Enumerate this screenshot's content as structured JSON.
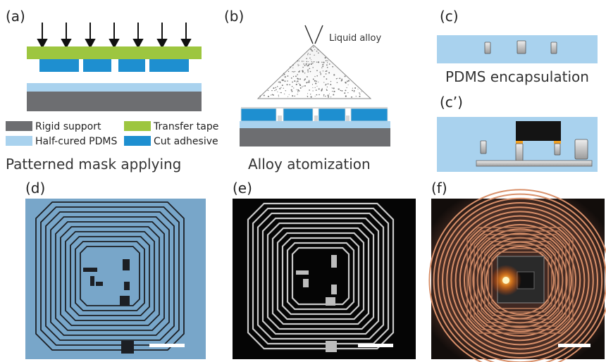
{
  "panels": {
    "a": {
      "tag": "(a)",
      "caption": "Patterned mask applying",
      "legend": [
        {
          "label": "Rigid support",
          "color": "#6d6e71"
        },
        {
          "label": "Transfer tape",
          "color": "#9dc63f"
        },
        {
          "label": "Half-cured PDMS",
          "color": "#a9d2ee"
        },
        {
          "label": "Cut adhesive",
          "color": "#1e8fd0"
        }
      ]
    },
    "b": {
      "tag": "(b)",
      "caption": "Alloy atomization",
      "nozzle_label": "Liquid alloy"
    },
    "c": {
      "tag": "(c)",
      "caption": "PDMS encapsulation"
    },
    "c_prime": {
      "tag": "(c’)"
    },
    "d": {
      "tag": "(d)",
      "background": "#78a6c9"
    },
    "e": {
      "tag": "(e)",
      "background": "#050505"
    },
    "f": {
      "tag": "(f)",
      "background": "#1a1512"
    }
  },
  "colors": {
    "rigid_support": "#6d6e71",
    "transfer_tape": "#9dc63f",
    "pdms": "#a9d2ee",
    "cut_adhesive": "#1e8fd0",
    "chip": "#141414",
    "solder": "#f2a021",
    "metal": "#c8cacc"
  }
}
